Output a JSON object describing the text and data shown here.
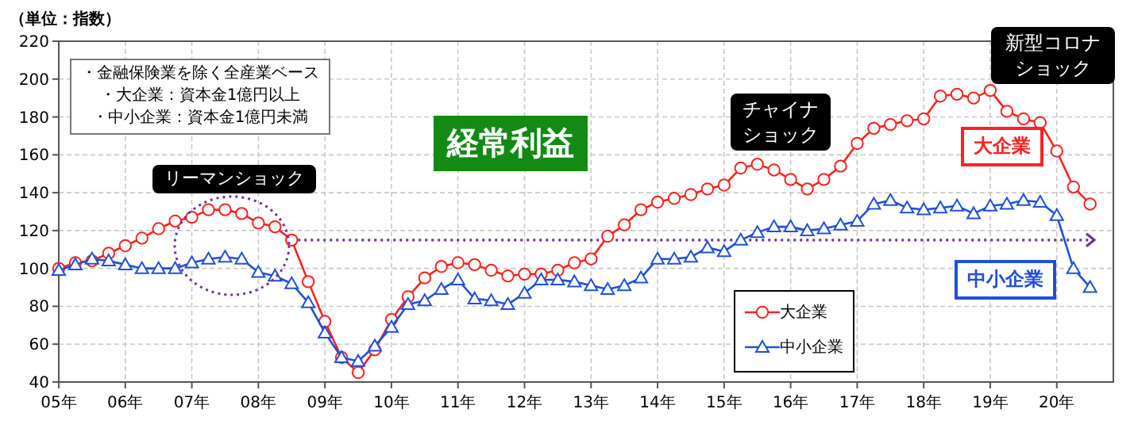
{
  "chart_data": {
    "type": "line",
    "title": "経常利益",
    "ylabel": "（単位：指数）",
    "categories": [
      "05年",
      null,
      null,
      null,
      "06年",
      null,
      null,
      null,
      "07年",
      null,
      null,
      null,
      "08年",
      null,
      null,
      null,
      "09年",
      null,
      null,
      null,
      "10年",
      null,
      null,
      null,
      "11年",
      null,
      null,
      null,
      "12年",
      null,
      null,
      null,
      "13年",
      null,
      null,
      null,
      "14年",
      null,
      null,
      null,
      "15年",
      null,
      null,
      null,
      "16年",
      null,
      null,
      null,
      "17年",
      null,
      null,
      null,
      "18年",
      null,
      null,
      null,
      "19年",
      null,
      null,
      null,
      "20年",
      null,
      null
    ],
    "series": [
      {
        "name": "大企業",
        "color": "#ff2020",
        "marker": "circle",
        "values": [
          100,
          103,
          104,
          108,
          112,
          116,
          121,
          125,
          127,
          131,
          131,
          129,
          124,
          122,
          115,
          93,
          72,
          53,
          45,
          57,
          73,
          85,
          95,
          101,
          103,
          102,
          99,
          96,
          97,
          97,
          99,
          103,
          105,
          117,
          123,
          131,
          135,
          137,
          139,
          142,
          144,
          153,
          155,
          152,
          147,
          142,
          147,
          154,
          166,
          174,
          176,
          178,
          179,
          191,
          192,
          190,
          194,
          183,
          179,
          177,
          162,
          143,
          134
        ]
      },
      {
        "name": "中小企業",
        "color": "#2050d8",
        "marker": "triangle",
        "values": [
          99,
          102,
          105,
          104,
          102,
          100,
          100,
          100,
          103,
          105,
          106,
          105,
          98,
          96,
          92,
          82,
          66,
          53,
          51,
          59,
          69,
          81,
          83,
          89,
          94,
          84,
          83,
          81,
          87,
          94,
          94,
          93,
          91,
          89,
          91,
          95,
          105,
          105,
          106,
          111,
          109,
          115,
          119,
          122,
          122,
          120,
          121,
          123,
          125,
          134,
          136,
          132,
          131,
          132,
          133,
          129,
          133,
          134,
          136,
          135,
          128,
          100,
          90
        ]
      }
    ],
    "ylim": [
      40,
      220
    ],
    "yticks": [
      40,
      60,
      80,
      100,
      120,
      140,
      160,
      180,
      200,
      220
    ],
    "grid": true,
    "legend": "bottom",
    "ref_lines": [
      {
        "axis": "y",
        "value": 115,
        "color": "#7030a0",
        "line_style": "dotted"
      }
    ],
    "annotations": [
      "・金融保険業を除く全産業ベース",
      "・大企業：資本金1億円以上",
      "・中小企業：資本金1億円未満",
      "リーマンショック",
      "チャイナショック",
      "新型コロナショック"
    ]
  }
}
